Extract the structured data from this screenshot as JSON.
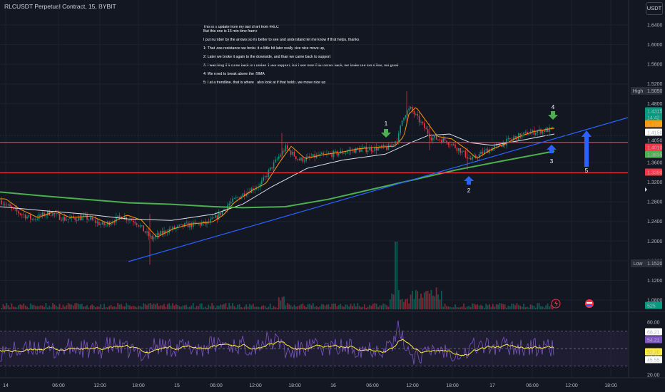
{
  "header": {
    "symbol_title": "RLCUSDT Perpetual Contract, 15, BYBIT",
    "currency_button": "USDT"
  },
  "annotation": {
    "lines": [
      "This is a update from my last chart from #RLC",
      "But this one is 15 min time frame",
      "",
      "I put number by the arrows so its better to see and understand let me know if that helps, thanks",
      "",
      "1: That was resistance we broke it a little bit later really nice nice move up,",
      "",
      "2: Later we broke it again to the downside, and than we came back to support",
      "",
      "3: I watching if it come back to number 1 ass support, but I see now if its comes back, we brake ore trend line, not good",
      "",
      "4: We need to break above the 20MA",
      "",
      "5: I at a trendline, that is where I also look at if that holds, we move nice up"
    ]
  },
  "markers": [
    {
      "label": "1",
      "color": "#4caf50",
      "direction": "down"
    },
    {
      "label": "2",
      "color": "#2962ff",
      "direction": "up"
    },
    {
      "label": "3",
      "color": "#2962ff",
      "direction": "up"
    },
    {
      "label": "4",
      "color": "#4caf50",
      "direction": "down"
    },
    {
      "label": "5",
      "color": "#2962ff",
      "direction": "up"
    }
  ],
  "price_axis": {
    "ticks": [
      "1.6400",
      "1.6000",
      "1.5600",
      "1.5200",
      "1.4800",
      "1.3600",
      "1.3200",
      "1.2800",
      "1.2400",
      "1.2000",
      "1.1600",
      "1.1200",
      "1.0800"
    ],
    "labels": [
      {
        "text": "High",
        "value": "1.5050",
        "color": "#131722",
        "bg": "#131722",
        "kind": "hilo"
      },
      {
        "text": "",
        "value": "1.4315",
        "color": "#ffffff",
        "bg": "#089981",
        "kind": "price"
      },
      {
        "text": "",
        "value": "14:42",
        "color": "#ffffff",
        "bg": "#089981",
        "kind": "price"
      },
      {
        "text": "",
        "value": "1.4305",
        "color": "#131722",
        "bg": "#ff9800",
        "kind": "price"
      },
      {
        "text": "",
        "value": "1.4150",
        "color": "#131722",
        "bg": "#ffffff",
        "kind": "price"
      },
      {
        "text": "",
        "value": "1.4050",
        "color": "#b2b5be",
        "bg": "#131722",
        "kind": "plain"
      },
      {
        "text": "",
        "value": "1.4010",
        "color": "#ffffff",
        "bg": "#f23645",
        "kind": "price"
      },
      {
        "text": "",
        "value": "1.3835",
        "color": "#131722",
        "bg": "#4caf50",
        "kind": "price"
      },
      {
        "text": "",
        "value": "1.3390",
        "color": "#ffffff",
        "bg": "#f23645",
        "kind": "price"
      },
      {
        "text": "Low",
        "value": "1.1520",
        "color": "#131722",
        "bg": "#131722",
        "kind": "hilo"
      },
      {
        "text": "",
        "value": "525",
        "color": "#ffffff",
        "bg": "#089981",
        "kind": "price"
      }
    ]
  },
  "rsi_axis": {
    "ticks": [
      "80.00",
      "40.00",
      "20.00"
    ],
    "labels": [
      {
        "value": "68.21",
        "color": "#131722",
        "bg": "#ffffff"
      },
      {
        "value": "54.21",
        "color": "#ffffff",
        "bg": "#7e57c2"
      },
      {
        "value": "52.20",
        "color": "#131722",
        "bg": "#ffeb3b"
      },
      {
        "value": "45.55",
        "color": "#131722",
        "bg": "#ffffff"
      }
    ]
  },
  "time_axis": [
    "14",
    "06:00",
    "12:00",
    "18:00",
    "15",
    "06:00",
    "12:00",
    "18:00",
    "16",
    "06:00",
    "12:00",
    "18:00",
    "17",
    "06:00",
    "12:00",
    "18:00"
  ],
  "colors": {
    "background": "#131722",
    "support_line": "#f23645",
    "trendline": "#2962ff",
    "ma20": "#ff9800",
    "ma50": "#e0e3eb",
    "ma200": "#4caf50",
    "rsi": "#7e57c2",
    "rsi_ma": "#ffeb3b",
    "candle_up": "#089981",
    "candle_down": "#f23645"
  },
  "icons": [
    "lightning-icon",
    "flag-icon",
    "scroll-right-icon"
  ]
}
